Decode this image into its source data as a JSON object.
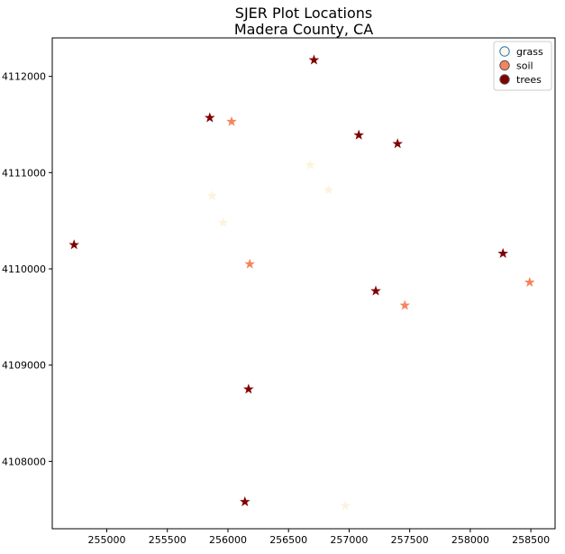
{
  "chart_data": {
    "type": "scatter",
    "title": [
      "SJER Plot Locations",
      "Madera County, CA"
    ],
    "xlabel": "",
    "ylabel": "",
    "xlim": [
      254550,
      258700
    ],
    "ylim": [
      4107300,
      4112400
    ],
    "xticks": [
      255000,
      255500,
      256000,
      256500,
      257000,
      257500,
      258000,
      258500
    ],
    "yticks": [
      4108000,
      4109000,
      4110000,
      4111000,
      4112000
    ],
    "grid": false,
    "marker": "star",
    "legend": {
      "position": "top-right",
      "entries": [
        {
          "name": "grass",
          "color": "#fff5eb",
          "edge": "#1f77b4"
        },
        {
          "name": "soil",
          "color": "#f4845f",
          "edge": "#555555"
        },
        {
          "name": "trees",
          "color": "#7f0000",
          "edge": "#555555"
        }
      ]
    },
    "series": [
      {
        "name": "grass",
        "color": "#fdf3dc",
        "points": [
          {
            "x": 255870,
            "y": 4110760
          },
          {
            "x": 255960,
            "y": 4110480
          },
          {
            "x": 256680,
            "y": 4111080
          },
          {
            "x": 256830,
            "y": 4110820
          },
          {
            "x": 256970,
            "y": 4107540
          }
        ]
      },
      {
        "name": "soil",
        "color": "#f4845f",
        "points": [
          {
            "x": 256030,
            "y": 4111530
          },
          {
            "x": 256180,
            "y": 4110050
          },
          {
            "x": 257460,
            "y": 4109620
          },
          {
            "x": 258490,
            "y": 4109860
          }
        ]
      },
      {
        "name": "trees",
        "color": "#7f0000",
        "points": [
          {
            "x": 256710,
            "y": 4112170
          },
          {
            "x": 255850,
            "y": 4111570
          },
          {
            "x": 257080,
            "y": 4111390
          },
          {
            "x": 257400,
            "y": 4111300
          },
          {
            "x": 254730,
            "y": 4110250
          },
          {
            "x": 258270,
            "y": 4110160
          },
          {
            "x": 257220,
            "y": 4109770
          },
          {
            "x": 256170,
            "y": 4108750
          },
          {
            "x": 256140,
            "y": 4107580
          }
        ]
      }
    ]
  }
}
